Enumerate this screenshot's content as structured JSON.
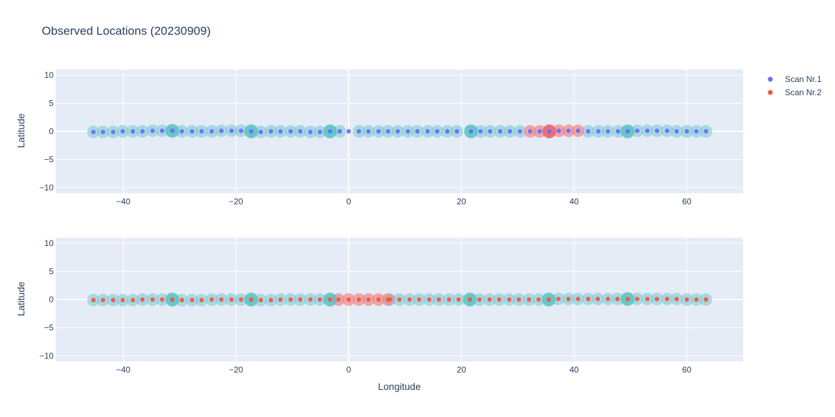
{
  "chart_data": {
    "type": "scatter",
    "title": "Observed Locations (20230909)",
    "xlabel": "Longitude",
    "ylabel": "Latitude",
    "xlim": [
      -52,
      70
    ],
    "ylim": [
      -11,
      11
    ],
    "xticks": [
      -40,
      -20,
      0,
      20,
      40,
      60
    ],
    "yticks": [
      -10,
      -5,
      0,
      5,
      10
    ],
    "grid": true,
    "legend_position": "top-right",
    "colors": {
      "plot_bg": "#e5ecf6",
      "grid": "#ffffff",
      "scan1": "#636efa",
      "scan2": "#ef553b",
      "halo_cyan": "#7fc9d6",
      "halo_big": "#4fc0c0",
      "halo_red": "#f08080"
    },
    "legend": [
      {
        "name": "Scan Nr.1",
        "color": "#636efa"
      },
      {
        "name": "Scan Nr.2",
        "color": "#ef553b"
      }
    ],
    "panels": [
      {
        "halo_x": [
          -45.3,
          -43.6,
          -41.8,
          -40.1,
          -38.3,
          -36.6,
          -34.8,
          -33.1,
          -31.3,
          -29.6,
          -27.8,
          -26.1,
          -24.3,
          -22.6,
          -20.8,
          -19.1,
          -17.3,
          -15.6,
          -13.8,
          -12.1,
          -10.3,
          -8.6,
          -6.8,
          -5.1,
          -3.3,
          -1.6,
          1.8,
          3.5,
          5.3,
          7.0,
          8.7,
          10.5,
          12.2,
          14.0,
          15.7,
          17.5,
          19.2,
          21.7,
          23.4,
          25.1,
          26.9,
          28.6,
          30.4,
          42.5,
          44.3,
          46.0,
          47.8,
          49.5,
          51.2,
          53.0,
          54.7,
          56.5,
          58.2,
          60.0,
          61.7,
          63.4
        ],
        "halo_y": [
          -0.1,
          -0.1,
          -0.1,
          0.0,
          0.0,
          0.0,
          0.1,
          0.1,
          0.1,
          0.0,
          0.0,
          0.0,
          0.0,
          0.1,
          0.1,
          0.1,
          0.0,
          -0.1,
          0.0,
          0.0,
          0.0,
          0.0,
          -0.1,
          -0.1,
          0.0,
          0.0,
          0.0,
          0.0,
          0.0,
          0.0,
          0.0,
          0.0,
          0.0,
          0.0,
          0.0,
          0.0,
          0.0,
          0.0,
          0.0,
          0.0,
          0.0,
          0.0,
          0.0,
          0.0,
          0.0,
          0.0,
          0.0,
          0.0,
          0.1,
          0.1,
          0.1,
          0.1,
          0.0,
          0.0,
          0.0,
          0.0
        ],
        "big_x": [
          -31.3,
          -17.3,
          -3.3,
          21.7,
          49.5
        ],
        "big_y": [
          0.1,
          0.0,
          0.0,
          0.0,
          0.0
        ],
        "red_x": [
          32.2,
          33.9,
          35.6,
          37.3,
          39.0,
          40.7
        ],
        "red_y": [
          0.0,
          0.0,
          0.0,
          0.1,
          0.1,
          0.1
        ],
        "red_big_x": [
          35.6
        ],
        "red_big_y": [
          0.0
        ],
        "points": [
          {
            "series": 0,
            "x": [
              -45.3,
              -43.6,
              -41.8,
              -40.1,
              -38.3,
              -36.6,
              -34.8,
              -33.1,
              -31.3,
              -29.6,
              -27.8,
              -26.1,
              -24.3,
              -22.6,
              -20.8,
              -19.1,
              -17.3,
              -15.6,
              -13.8,
              -12.1,
              -10.3,
              -8.6,
              -6.8,
              -5.1,
              -3.3,
              -1.6,
              0.0,
              1.8,
              3.5,
              5.3,
              7.0,
              8.7,
              10.5,
              12.2,
              14.0,
              15.7,
              17.5,
              19.2,
              21.7,
              23.4,
              25.1,
              26.9,
              28.6,
              30.4,
              32.2,
              33.9,
              35.6,
              37.3,
              39.0,
              40.7,
              42.5,
              44.3,
              46.0,
              47.8,
              49.5,
              51.2,
              53.0,
              54.7,
              56.5,
              58.2,
              60.0,
              61.7,
              63.4
            ],
            "y": [
              -0.1,
              -0.1,
              -0.1,
              0.0,
              0.0,
              0.0,
              0.1,
              0.1,
              0.1,
              0.0,
              0.0,
              0.0,
              0.0,
              0.1,
              0.1,
              0.1,
              0.0,
              -0.1,
              0.0,
              0.0,
              0.0,
              0.0,
              -0.1,
              -0.1,
              0.0,
              0.0,
              0.0,
              0.0,
              0.0,
              0.0,
              0.0,
              0.0,
              0.0,
              0.0,
              0.0,
              0.0,
              0.0,
              0.0,
              0.0,
              0.0,
              0.0,
              0.0,
              0.0,
              0.0,
              0.0,
              0.0,
              0.0,
              0.1,
              0.1,
              0.1,
              0.0,
              0.0,
              0.0,
              0.0,
              0.0,
              0.1,
              0.1,
              0.1,
              0.1,
              0.0,
              0.0,
              0.0,
              0.0
            ]
          }
        ]
      },
      {
        "halo_x": [
          -45.3,
          -43.6,
          -41.8,
          -40.1,
          -38.3,
          -36.6,
          -34.8,
          -33.1,
          -31.3,
          -29.6,
          -27.8,
          -26.1,
          -24.3,
          -22.6,
          -20.8,
          -19.1,
          -17.3,
          -15.6,
          -13.8,
          -12.1,
          -10.3,
          -8.6,
          -6.8,
          -5.1,
          -3.3,
          7.3,
          9.0,
          10.8,
          12.5,
          14.3,
          16.0,
          17.8,
          19.5,
          21.5,
          23.2,
          25.0,
          26.7,
          28.5,
          30.2,
          32.0,
          33.7,
          35.5,
          37.2,
          39.0,
          40.7,
          42.5,
          44.2,
          46.0,
          47.7,
          49.5,
          51.2,
          53.0,
          54.7,
          56.5,
          58.2,
          60.0,
          61.7,
          63.4
        ],
        "halo_y": [
          -0.1,
          -0.1,
          -0.1,
          -0.1,
          -0.1,
          0.0,
          0.0,
          0.0,
          0.0,
          -0.1,
          -0.1,
          -0.1,
          0.0,
          0.0,
          0.0,
          0.0,
          0.0,
          -0.1,
          -0.1,
          0.0,
          0.0,
          0.0,
          0.0,
          0.0,
          0.0,
          0.0,
          0.0,
          0.0,
          0.0,
          0.0,
          0.0,
          0.0,
          0.0,
          0.0,
          0.0,
          0.0,
          0.0,
          0.0,
          0.0,
          0.0,
          0.0,
          0.0,
          0.1,
          0.1,
          0.1,
          0.1,
          0.1,
          0.1,
          0.1,
          0.1,
          0.1,
          0.1,
          0.1,
          0.1,
          0.1,
          0.0,
          0.0,
          0.0
        ],
        "big_x": [
          -31.3,
          -17.3,
          -3.3,
          21.5,
          35.5,
          49.5
        ],
        "big_y": [
          0.0,
          0.0,
          0.0,
          0.0,
          0.0,
          0.1
        ],
        "red_x": [
          -1.8,
          0.0,
          1.8,
          3.5,
          5.3,
          7.0
        ],
        "red_y": [
          0.0,
          0.0,
          0.0,
          0.0,
          0.0,
          0.0
        ],
        "red_big_x": [],
        "red_big_y": [],
        "points": [
          {
            "series": 1,
            "x": [
              -45.3,
              -43.6,
              -41.8,
              -40.1,
              -38.3,
              -36.6,
              -34.8,
              -33.1,
              -31.3,
              -29.6,
              -27.8,
              -26.1,
              -24.3,
              -22.6,
              -20.8,
              -19.1,
              -17.3,
              -15.6,
              -13.8,
              -12.1,
              -10.3,
              -8.6,
              -6.8,
              -5.1,
              -3.3,
              -1.8,
              0.0,
              1.8,
              3.5,
              5.3,
              7.0,
              7.3,
              9.0,
              10.8,
              12.5,
              14.3,
              16.0,
              17.8,
              19.5,
              21.5,
              23.2,
              25.0,
              26.7,
              28.5,
              30.2,
              32.0,
              33.7,
              35.5,
              37.2,
              39.0,
              40.7,
              42.5,
              44.2,
              46.0,
              47.7,
              49.5,
              51.2,
              53.0,
              54.7,
              56.5,
              58.2,
              60.0,
              61.7,
              63.4
            ],
            "y": [
              -0.1,
              -0.1,
              -0.1,
              -0.1,
              -0.1,
              0.0,
              0.0,
              0.0,
              0.0,
              -0.1,
              -0.1,
              -0.1,
              0.0,
              0.0,
              0.0,
              0.0,
              0.0,
              -0.1,
              -0.1,
              0.0,
              0.0,
              0.0,
              0.0,
              0.0,
              0.0,
              0.0,
              0.0,
              0.0,
              0.0,
              0.0,
              0.0,
              0.0,
              0.0,
              0.0,
              0.0,
              0.0,
              0.0,
              0.0,
              0.0,
              0.0,
              0.0,
              0.0,
              0.0,
              0.0,
              0.0,
              0.0,
              0.0,
              0.0,
              0.1,
              0.1,
              0.1,
              0.1,
              0.1,
              0.1,
              0.1,
              0.1,
              0.1,
              0.1,
              0.1,
              0.1,
              0.1,
              0.0,
              0.0,
              0.0
            ]
          }
        ]
      }
    ]
  }
}
